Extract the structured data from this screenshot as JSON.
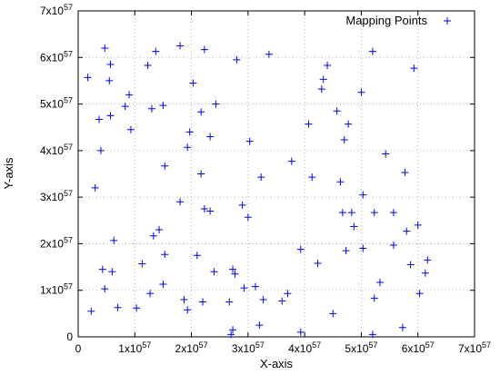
{
  "chart_data": {
    "type": "scatter",
    "xlabel": "X-axis",
    "ylabel": "Y-axis",
    "xlim": [
      0,
      7
    ],
    "ylim": [
      0,
      7
    ],
    "tick_labels": [
      "0",
      "1x10",
      "2x10",
      "3x10",
      "4x10",
      "5x10",
      "6x10",
      "7x10"
    ],
    "tick_exponent": "57",
    "grid": true,
    "legend_position": "top-right",
    "marker_color": "#0000ff",
    "series": [
      {
        "name": "Mapping Points",
        "marker": "plus",
        "points": [
          [
            0.17,
            5.57
          ],
          [
            0.23,
            0.55
          ],
          [
            0.3,
            3.2
          ],
          [
            0.37,
            4.67
          ],
          [
            0.4,
            4.0
          ],
          [
            0.43,
            1.45
          ],
          [
            0.47,
            1.03
          ],
          [
            0.47,
            6.2
          ],
          [
            0.55,
            5.5
          ],
          [
            0.57,
            5.85
          ],
          [
            0.57,
            4.75
          ],
          [
            0.6,
            1.4
          ],
          [
            0.63,
            2.07
          ],
          [
            0.7,
            0.63
          ],
          [
            0.83,
            4.95
          ],
          [
            0.9,
            5.2
          ],
          [
            0.93,
            4.45
          ],
          [
            1.03,
            0.62
          ],
          [
            1.13,
            1.57
          ],
          [
            1.23,
            5.83
          ],
          [
            1.27,
            0.93
          ],
          [
            1.3,
            4.9
          ],
          [
            1.33,
            2.17
          ],
          [
            1.37,
            6.13
          ],
          [
            1.43,
            2.3
          ],
          [
            1.5,
            1.13
          ],
          [
            1.5,
            4.97
          ],
          [
            1.53,
            3.67
          ],
          [
            1.53,
            1.77
          ],
          [
            1.8,
            2.9
          ],
          [
            1.8,
            6.25
          ],
          [
            1.87,
            0.8
          ],
          [
            1.93,
            4.07
          ],
          [
            1.93,
            0.58
          ],
          [
            1.97,
            4.4
          ],
          [
            2.03,
            5.45
          ],
          [
            2.1,
            1.75
          ],
          [
            2.17,
            4.83
          ],
          [
            2.17,
            3.5
          ],
          [
            2.2,
            0.75
          ],
          [
            2.23,
            6.17
          ],
          [
            2.23,
            2.75
          ],
          [
            2.33,
            4.3
          ],
          [
            2.33,
            2.7
          ],
          [
            2.4,
            1.4
          ],
          [
            2.43,
            5.0
          ],
          [
            2.67,
            0.75
          ],
          [
            2.7,
            0.05
          ],
          [
            2.73,
            1.45
          ],
          [
            2.73,
            0.15
          ],
          [
            2.77,
            1.35
          ],
          [
            2.8,
            5.95
          ],
          [
            2.9,
            2.83
          ],
          [
            2.93,
            1.05
          ],
          [
            3.0,
            2.57
          ],
          [
            3.03,
            4.2
          ],
          [
            3.13,
            1.08
          ],
          [
            3.2,
            0.25
          ],
          [
            3.23,
            3.43
          ],
          [
            3.27,
            0.8
          ],
          [
            3.37,
            6.07
          ],
          [
            3.6,
            0.77
          ],
          [
            3.7,
            0.93
          ],
          [
            3.77,
            3.77
          ],
          [
            3.93,
            0.1
          ],
          [
            3.93,
            1.88
          ],
          [
            4.07,
            4.57
          ],
          [
            4.13,
            3.43
          ],
          [
            4.23,
            1.58
          ],
          [
            4.3,
            5.32
          ],
          [
            4.33,
            5.53
          ],
          [
            4.4,
            5.83
          ],
          [
            4.5,
            0.5
          ],
          [
            4.57,
            4.85
          ],
          [
            4.63,
            3.33
          ],
          [
            4.67,
            2.67
          ],
          [
            4.7,
            4.23
          ],
          [
            4.73,
            1.85
          ],
          [
            4.77,
            4.57
          ],
          [
            4.83,
            2.67
          ],
          [
            4.87,
            2.37
          ],
          [
            5.0,
            5.25
          ],
          [
            5.03,
            3.05
          ],
          [
            5.03,
            1.9
          ],
          [
            5.2,
            6.13
          ],
          [
            5.2,
            0.05
          ],
          [
            5.23,
            0.83
          ],
          [
            5.23,
            2.67
          ],
          [
            5.33,
            1.17
          ],
          [
            5.43,
            3.93
          ],
          [
            5.57,
            2.67
          ],
          [
            5.57,
            1.97
          ],
          [
            5.73,
            0.2
          ],
          [
            5.77,
            3.53
          ],
          [
            5.8,
            2.27
          ],
          [
            5.87,
            1.55
          ],
          [
            5.93,
            5.77
          ],
          [
            6.0,
            2.4
          ],
          [
            6.03,
            0.93
          ],
          [
            6.13,
            1.37
          ],
          [
            6.17,
            1.65
          ]
        ]
      }
    ]
  }
}
